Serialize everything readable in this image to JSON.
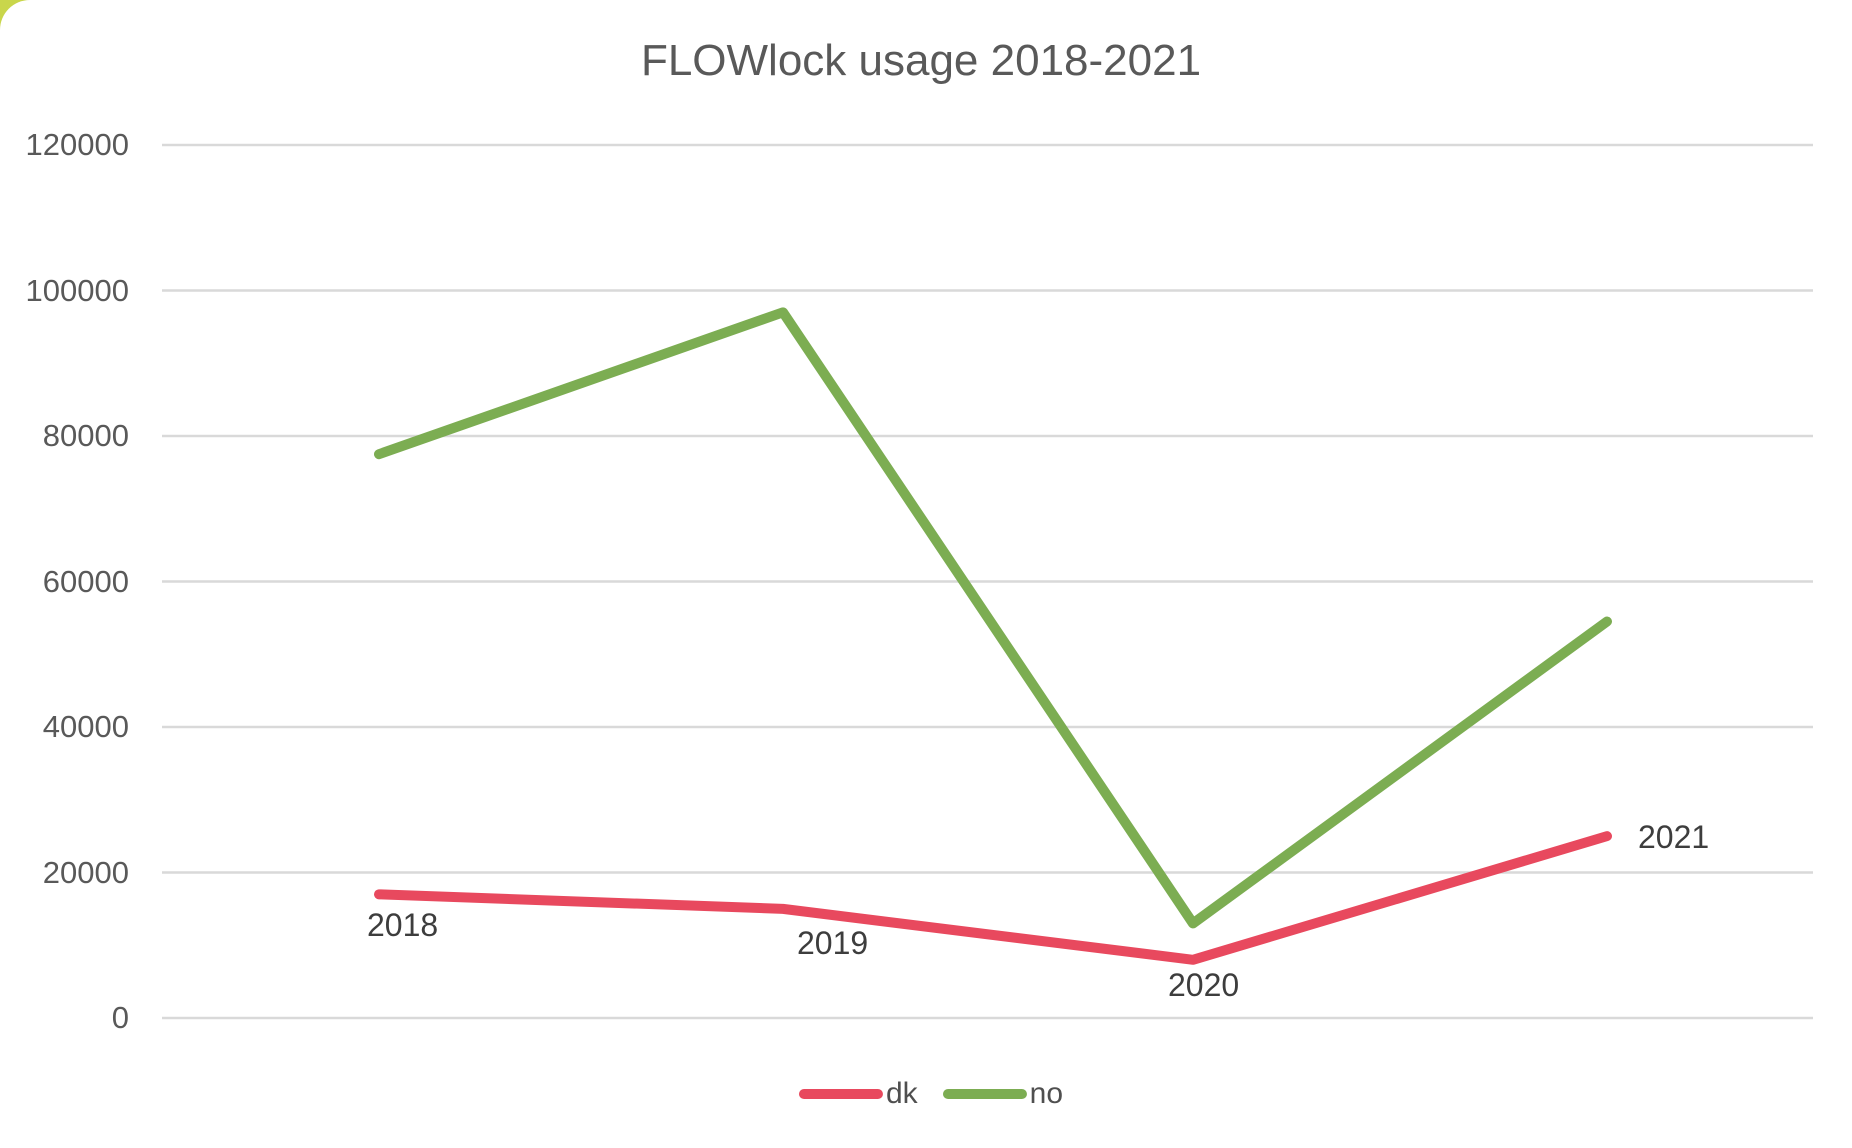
{
  "chart_data": {
    "type": "line",
    "title": "FLOWlock usage 2018-2021",
    "categories": [
      "2018",
      "2019",
      "2020",
      "2021"
    ],
    "series": [
      {
        "name": "dk",
        "color": "#e8495e",
        "values": [
          17000,
          15000,
          8000,
          25000
        ]
      },
      {
        "name": "no",
        "color": "#7cad52",
        "values": [
          77500,
          97000,
          13000,
          54500
        ]
      }
    ],
    "xlabel": "",
    "ylabel": "",
    "ylim": [
      0,
      120000
    ],
    "yticks": [
      0,
      20000,
      40000,
      60000,
      80000,
      100000,
      120000
    ],
    "grid": true,
    "legend_position": "bottom",
    "category_labels_shown_as_point_labels": true
  },
  "colors": {
    "background": "#ffffff",
    "corner_accent": "#c9d64b",
    "gridline": "#d9d9d9",
    "title_text": "#595959",
    "tick_text": "#595959",
    "year_label_text": "#3d3d3d",
    "legend_text": "#4f4f4f",
    "series_dk": "#e8495e",
    "series_no": "#7cad52"
  }
}
